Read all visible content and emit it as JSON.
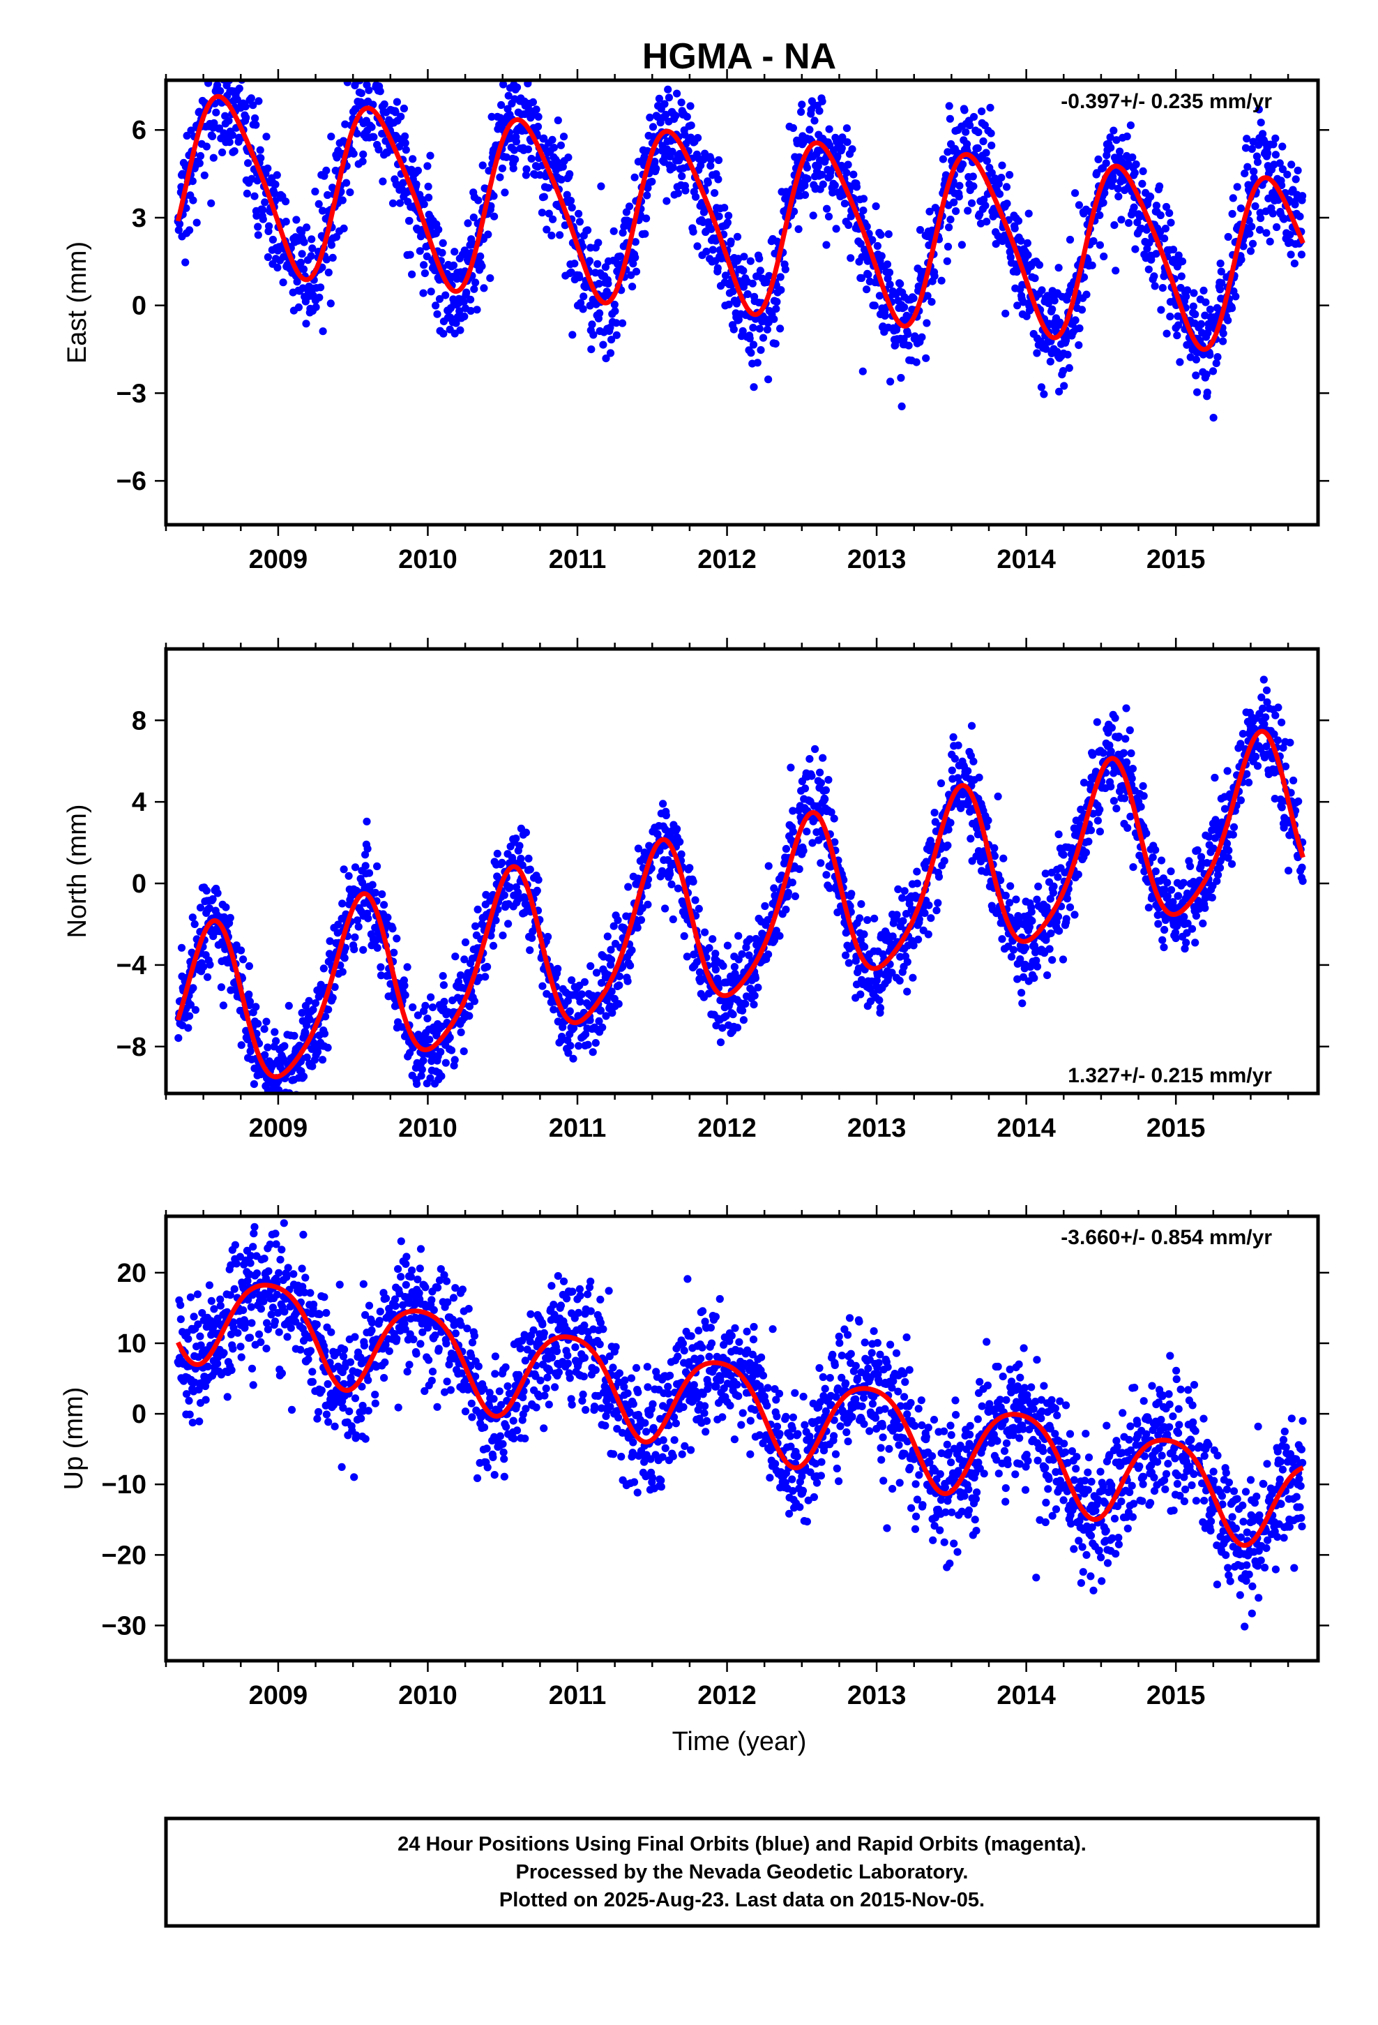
{
  "title": "HGMA - NA",
  "colors": {
    "final_orbits": "#0000ff",
    "fit": "#ff0000",
    "frame": "#000000"
  },
  "caption": {
    "line1": "24 Hour Positions Using Final Orbits (blue) and Rapid Orbits (magenta).",
    "line2": "Processed by the Nevada Geodetic Laboratory.",
    "line3": "Plotted on 2025-Aug-23. Last data on 2015-Nov-05."
  },
  "chart_data": [
    {
      "type": "scatter",
      "component": "east",
      "ylabel": "East (mm)",
      "xlabel": "",
      "xlim": [
        2008.25,
        2015.95
      ],
      "ylim": [
        -7.5,
        7.7
      ],
      "xticks": [
        "2009",
        "2010",
        "2011",
        "2012",
        "2013",
        "2014",
        "2015"
      ],
      "yticks": [
        "6",
        "3",
        "0",
        "−3",
        "−6"
      ],
      "ytick_values": [
        6,
        3,
        0,
        -3,
        -6
      ],
      "rate_text": "-0.397+/- 0.235 mm/yr",
      "rate_position": "top-right",
      "trend": {
        "offset": 2.9,
        "rate": -0.397,
        "ref": 2012.0
      },
      "seasonal": {
        "annual_amp": 2.9,
        "annual_peak": 2008.65,
        "semiannual_amp": 0.45,
        "semiannual_peak": 2008.5
      },
      "noise_sd": 1.0,
      "data_start": 2008.33,
      "data_end": 2015.85,
      "grid": false,
      "series": [
        {
          "name": "Final Orbits",
          "color": "#0000ff",
          "marker": "dot"
        },
        {
          "name": "Fit",
          "color": "#ff0000",
          "marker": "line"
        }
      ]
    },
    {
      "type": "scatter",
      "component": "north",
      "ylabel": "North (mm)",
      "xlabel": "",
      "xlim": [
        2008.25,
        2015.95
      ],
      "ylim": [
        -10.3,
        11.5
      ],
      "xticks": [
        "2009",
        "2010",
        "2011",
        "2012",
        "2013",
        "2014",
        "2015"
      ],
      "yticks": [
        "8",
        "4",
        "0",
        "−4",
        "−8"
      ],
      "ytick_values": [
        8,
        4,
        0,
        -4,
        -8
      ],
      "rate_text": "1.327+/- 0.215 mm/yr",
      "rate_position": "bottom-right",
      "trend": {
        "offset": -1.9,
        "rate": 1.327,
        "ref": 2012.0
      },
      "seasonal": {
        "annual_amp": 4.0,
        "annual_peak": 2008.55,
        "semiannual_amp": 0.7,
        "semiannual_peak": 2008.6
      },
      "noise_sd": 1.15,
      "data_start": 2008.33,
      "data_end": 2015.85,
      "grid": false,
      "series": [
        {
          "name": "Final Orbits",
          "color": "#0000ff",
          "marker": "dot"
        },
        {
          "name": "Fit",
          "color": "#ff0000",
          "marker": "line"
        }
      ]
    },
    {
      "type": "scatter",
      "component": "up",
      "ylabel": "Up (mm)",
      "xlabel": "Time (year)",
      "xlim": [
        2008.25,
        2015.95
      ],
      "ylim": [
        -35,
        28
      ],
      "xticks": [
        "2009",
        "2010",
        "2011",
        "2012",
        "2013",
        "2014",
        "2015"
      ],
      "yticks": [
        "20",
        "10",
        "0",
        "−10",
        "−20",
        "−30"
      ],
      "ytick_values": [
        20,
        10,
        0,
        -10,
        -20,
        -30
      ],
      "rate_text": "-3.660+/- 0.854 mm/yr",
      "rate_position": "top-right",
      "trend": {
        "offset": 1.5,
        "rate": -3.66,
        "ref": 2012.0
      },
      "seasonal": {
        "annual_amp": 6.5,
        "annual_peak": 2008.95,
        "semiannual_amp": 1.0,
        "semiannual_peak": 2008.7
      },
      "noise_sd": 4.5,
      "data_start": 2008.33,
      "data_end": 2015.85,
      "grid": false,
      "series": [
        {
          "name": "Final Orbits",
          "color": "#0000ff",
          "marker": "dot"
        },
        {
          "name": "Fit",
          "color": "#ff0000",
          "marker": "line"
        }
      ]
    }
  ]
}
